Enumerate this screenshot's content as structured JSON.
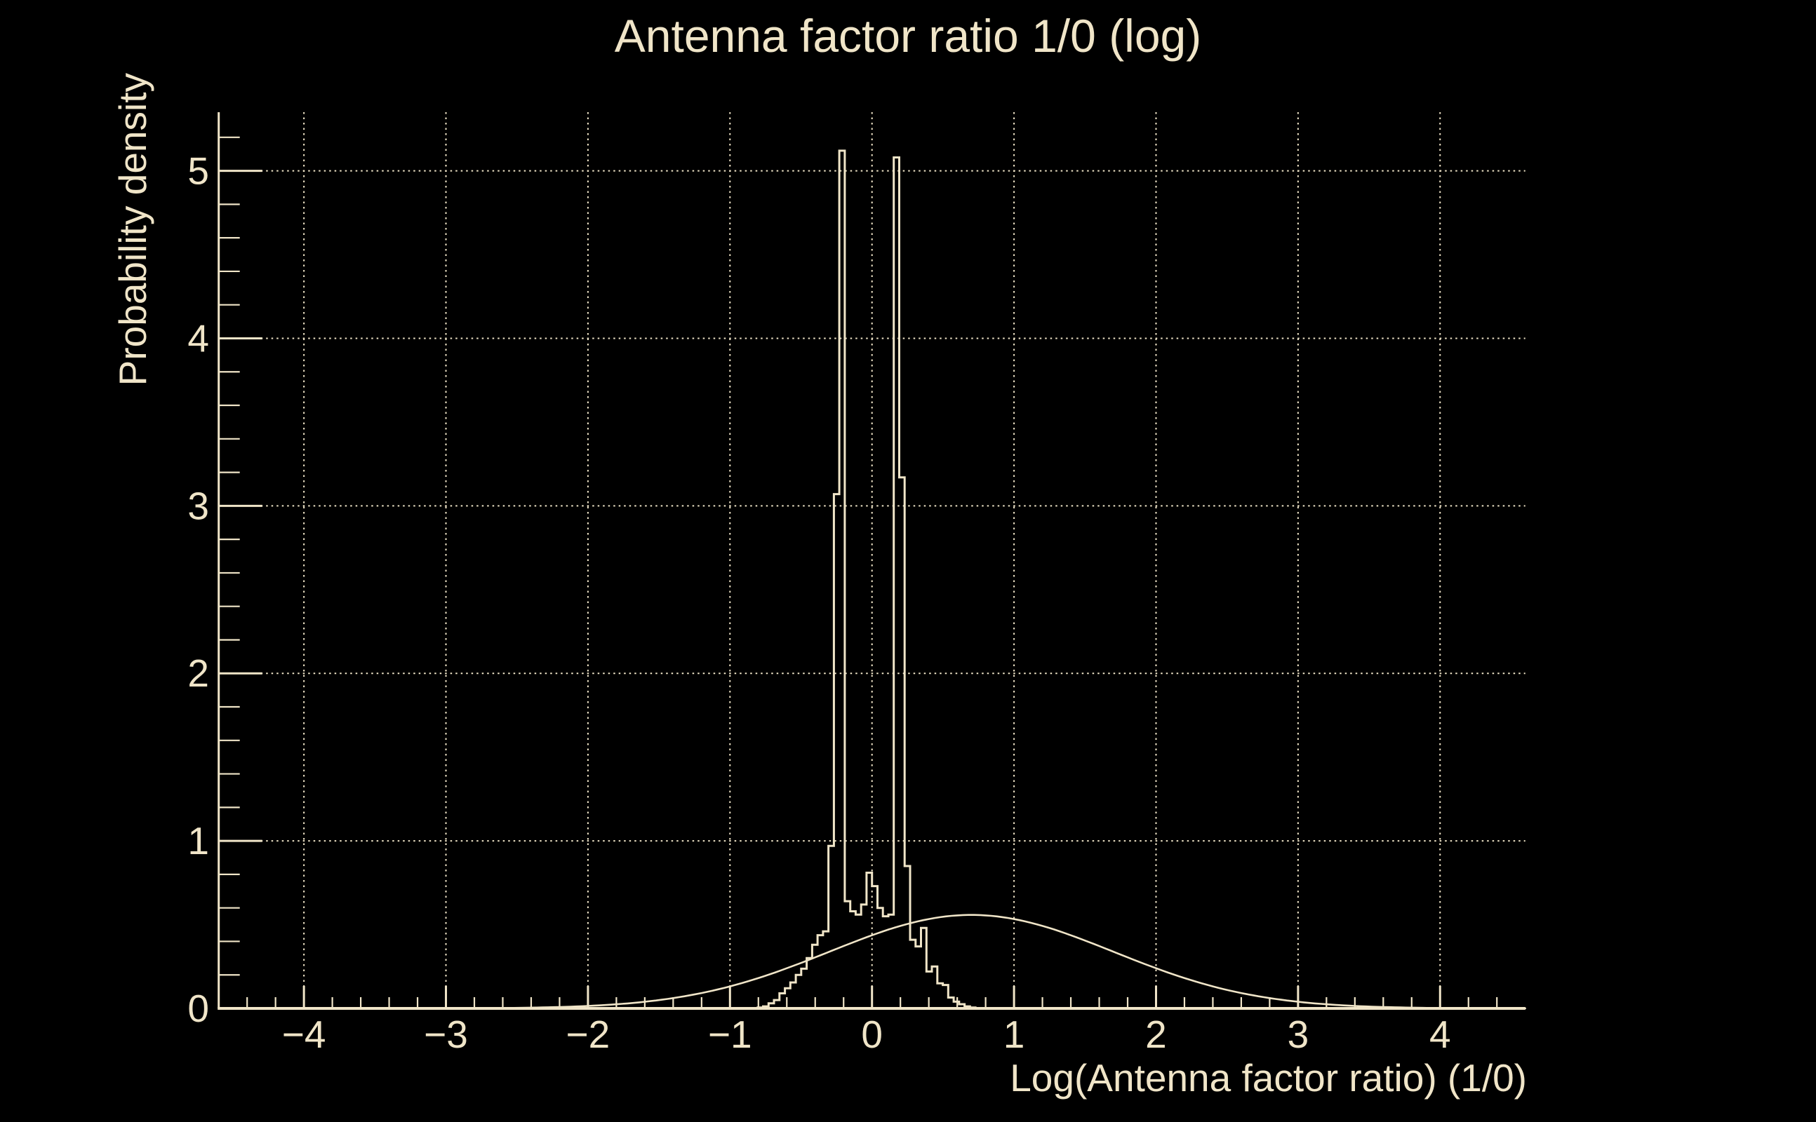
{
  "page": {
    "background": "#000000",
    "foreground": "#f0e5c8"
  },
  "chart_data": {
    "type": "bar",
    "subtype": "histogram-with-curve",
    "title": "Antenna factor ratio 1/0 (log)",
    "xlabel": "Log(Antenna factor ratio) (1/0)",
    "ylabel": "Probability density",
    "xlim": [
      -4.6,
      4.6
    ],
    "ylim": [
      0,
      5.35
    ],
    "x_major_ticks": [
      -4,
      -3,
      -2,
      -1,
      0,
      1,
      2,
      3,
      4
    ],
    "x_tick_labels": [
      "−4",
      "−3",
      "−2",
      "−1",
      "0",
      "1",
      "2",
      "3",
      "4"
    ],
    "y_major_ticks": [
      0,
      1,
      2,
      3,
      4,
      5
    ],
    "y_tick_labels": [
      "0",
      "1",
      "2",
      "3",
      "4",
      "5"
    ],
    "minor_tick_step": 0.2,
    "grid": {
      "show": true,
      "style": "dotted",
      "at": "major-ticks"
    },
    "colors": {
      "background": "#000000",
      "foreground": "#f0e5c8",
      "grid": "#f0e5c8",
      "histogram_line": "#f0e5c8",
      "curve_line": "#f0e5c8"
    },
    "histogram": {
      "bin_width": 0.0383333,
      "first_bin_left_edge": -0.805,
      "heights": [
        0.005,
        0.012,
        0.03,
        0.05,
        0.09,
        0.12,
        0.155,
        0.2,
        0.237,
        0.3,
        0.38,
        0.437,
        0.46,
        0.97,
        3.07,
        5.12,
        0.64,
        0.58,
        0.56,
        0.62,
        0.81,
        0.73,
        0.6,
        0.55,
        0.56,
        5.08,
        3.17,
        0.85,
        0.41,
        0.37,
        0.48,
        0.22,
        0.25,
        0.15,
        0.14,
        0.065,
        0.04,
        0.025,
        0.012,
        0.005
      ],
      "peaks": [
        {
          "x_center": -0.211,
          "height": 5.12
        },
        {
          "x_center": 0.172,
          "height": 5.08
        }
      ]
    },
    "curve": {
      "shape": "gaussian",
      "mean": 0.7,
      "sigma": 1.0,
      "peak_height": 0.558,
      "x_range": [
        -4.6,
        4.6
      ]
    }
  }
}
